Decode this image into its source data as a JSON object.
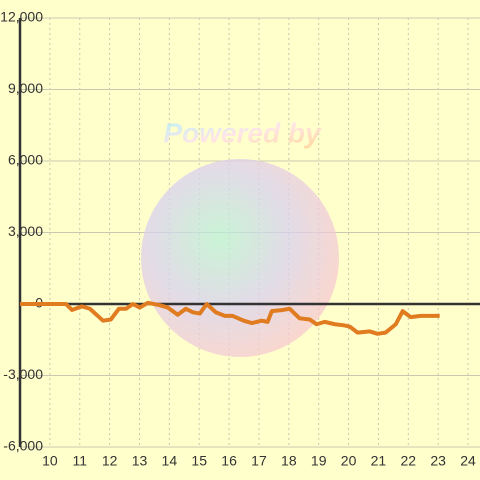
{
  "chart_data": {
    "type": "line",
    "watermark": "Powered by",
    "x": [
      9.0,
      10.54,
      10.74,
      11.07,
      11.34,
      11.78,
      12.04,
      12.31,
      12.55,
      12.78,
      13.01,
      13.28,
      13.68,
      13.95,
      14.28,
      14.55,
      14.79,
      15.02,
      15.25,
      15.56,
      15.86,
      16.12,
      16.49,
      16.76,
      17.09,
      17.29,
      17.43,
      17.8,
      18.03,
      18.36,
      18.7,
      18.93,
      19.2,
      19.54,
      19.87,
      20.04,
      20.3,
      20.71,
      20.97,
      21.24,
      21.58,
      21.81,
      22.08,
      22.41,
      23.05
    ],
    "series": [
      {
        "color": "#e07b20",
        "values": [
          0,
          0,
          -250,
          -100,
          -200,
          -700,
          -650,
          -200,
          -200,
          0,
          -150,
          50,
          -50,
          -150,
          -450,
          -200,
          -350,
          -400,
          0,
          -350,
          -500,
          -500,
          -700,
          -800,
          -700,
          -750,
          -300,
          -250,
          -200,
          -600,
          -650,
          -850,
          -750,
          -850,
          -900,
          -950,
          -1200,
          -1150,
          -1250,
          -1200,
          -850,
          -300,
          -550,
          -500,
          -500
        ]
      }
    ],
    "xlim": [
      9,
      24.4
    ],
    "xticks": [
      10,
      11,
      12,
      13,
      14,
      15,
      16,
      17,
      18,
      19,
      20,
      21,
      22,
      23,
      24
    ],
    "ylim": [
      -6000,
      12000
    ],
    "yticks": [
      {
        "value": -6000,
        "label": "-6,000"
      },
      {
        "value": -3000,
        "label": "-3,000"
      },
      0,
      {
        "value": 3000,
        "label": "3,000"
      },
      {
        "value": 6000,
        "label": "6,000"
      },
      {
        "value": 9000,
        "label": "9,000"
      },
      {
        "value": 12000,
        "label": "12,000"
      }
    ],
    "grid": true
  }
}
